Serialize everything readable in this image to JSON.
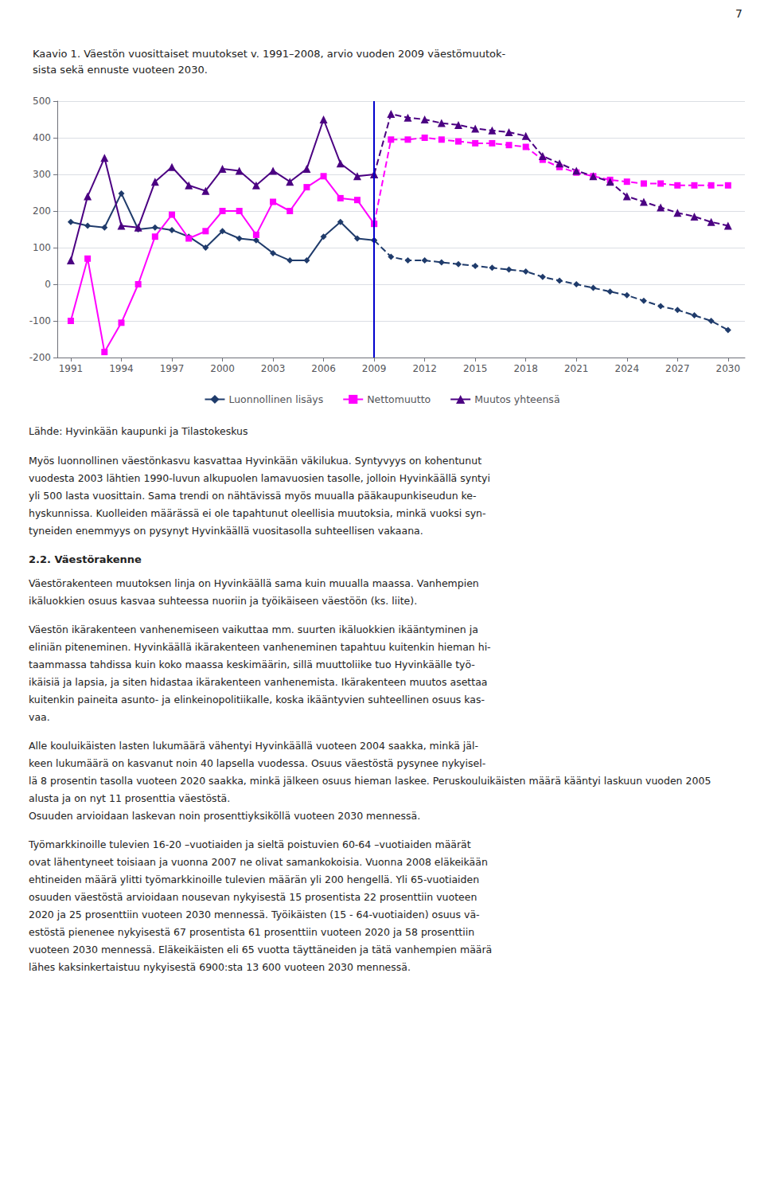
{
  "chart_data": {
    "type": "line",
    "title": [
      "Kaavio 1. Väestön vuosittaiset muutokset v. 1991–2008, arvio vuoden 2009 väestömuutok-",
      "sista sekä ennuste vuoteen 2030."
    ],
    "xlim": [
      1990.2,
      2031
    ],
    "xticks": [
      1991,
      1994,
      1997,
      2000,
      2003,
      2006,
      2009,
      2012,
      2015,
      2018,
      2021,
      2024,
      2027,
      2030
    ],
    "ylim": [
      -200,
      500
    ],
    "yticks": [
      -200,
      -100,
      0,
      100,
      200,
      300,
      400,
      500
    ],
    "grid": "y",
    "legend": "bottom",
    "series": [
      {
        "name": "Luonnollinen lisäys",
        "color": "#1F3B6B",
        "marker": "diamond",
        "line_style": "solid",
        "x": [
          1991,
          1992,
          1993,
          1994,
          1995,
          1996,
          1997,
          1998,
          1999,
          2000,
          2001,
          2002,
          2003,
          2004,
          2005,
          2006,
          2007,
          2008,
          2009
        ],
        "values": [
          170,
          160,
          155,
          248,
          150,
          155,
          148,
          130,
          100,
          145,
          125,
          120,
          85,
          65,
          65,
          130,
          170,
          125,
          120
        ]
      },
      {
        "name": "Luonnollinen lisäys",
        "color": "#1F3B6B",
        "marker": "diamond",
        "line_style": "dashed",
        "x": [
          2009,
          2010,
          2011,
          2012,
          2013,
          2014,
          2015,
          2016,
          2017,
          2018,
          2019,
          2020,
          2021,
          2022,
          2023,
          2024,
          2025,
          2026,
          2027,
          2028,
          2029,
          2030
        ],
        "values": [
          120,
          75,
          65,
          65,
          60,
          55,
          50,
          45,
          40,
          35,
          20,
          10,
          0,
          -10,
          -20,
          -30,
          -45,
          -60,
          -70,
          -85,
          -100,
          -125
        ]
      },
      {
        "name": "Nettomuutto",
        "color": "#FF00FF",
        "marker": "square",
        "line_style": "solid",
        "x": [
          1991,
          1992,
          1993,
          1994,
          1995,
          1996,
          1997,
          1998,
          1999,
          2000,
          2001,
          2002,
          2003,
          2004,
          2005,
          2006,
          2007,
          2008,
          2009
        ],
        "values": [
          -100,
          70,
          -185,
          -105,
          0,
          130,
          190,
          125,
          145,
          200,
          200,
          135,
          225,
          200,
          265,
          295,
          235,
          230,
          165
        ]
      },
      {
        "name": "Nettomuutto",
        "color": "#FF00FF",
        "marker": "square",
        "line_style": "dashed",
        "x": [
          2009,
          2010,
          2011,
          2012,
          2013,
          2014,
          2015,
          2016,
          2017,
          2018,
          2019,
          2020,
          2021,
          2022,
          2023,
          2024,
          2025,
          2026,
          2027,
          2028,
          2029,
          2030
        ],
        "values": [
          165,
          395,
          395,
          400,
          395,
          390,
          385,
          385,
          380,
          375,
          340,
          320,
          305,
          295,
          285,
          280,
          275,
          275,
          270,
          270,
          270,
          270
        ]
      },
      {
        "name": "Muutos yhteensä",
        "color": "#4B0082",
        "marker": "triangle",
        "line_style": "solid",
        "x": [
          1991,
          1992,
          1993,
          1994,
          1995,
          1996,
          1997,
          1998,
          1999,
          2000,
          2001,
          2002,
          2003,
          2004,
          2005,
          2006,
          2007,
          2008,
          2009
        ],
        "values": [
          65,
          240,
          345,
          160,
          155,
          280,
          320,
          270,
          255,
          315,
          310,
          270,
          310,
          280,
          315,
          450,
          330,
          295,
          300
        ]
      },
      {
        "name": "Muutos yhteensä",
        "color": "#4B0082",
        "marker": "triangle",
        "line_style": "dashed",
        "x": [
          2009,
          2010,
          2011,
          2012,
          2013,
          2014,
          2015,
          2016,
          2017,
          2018,
          2019,
          2020,
          2021,
          2022,
          2023,
          2024,
          2025,
          2026,
          2027,
          2028,
          2029,
          2030
        ],
        "values": [
          300,
          465,
          455,
          450,
          440,
          435,
          425,
          420,
          415,
          405,
          350,
          330,
          310,
          295,
          280,
          240,
          225,
          210,
          195,
          185,
          170,
          160
        ]
      }
    ],
    "vlines": [
      {
        "x": 2009,
        "color": "#0000CC"
      }
    ],
    "annotations": {
      "page_number": "7",
      "source": "Lähde: Hyvinkään kaupunki ja Tilastokeskus",
      "body": [
        {
          "lines": [
            "Myös luonnollinen väestönkasvu kasvattaa Hyvinkään väkilukua. Syntyvyys on kohentunut",
            "vuodesta 2003 lähtien 1990-luvun alkupuolen lamavuosien tasolle, jolloin Hyvinkäällä syntyi",
            "yli 500 lasta vuosittain. Sama trendi on nähtävissä myös muualla pääkaupunkiseudun ke-",
            "hyskunnissa. Kuolleiden määrässä ei ole tapahtunut oleellisia muutoksia, minkä vuoksi syn-",
            "tyneiden enemmyys on pysynyt Hyvinkäällä vuositasolla suhteellisen vakaana."
          ]
        },
        {
          "heading": "2.2. Väestörakenne"
        },
        {
          "lines": [
            "Väestörakenteen muutoksen linja on Hyvinkäällä sama kuin muualla maassa. Vanhempien",
            "ikäluokkien osuus kasvaa suhteessa nuoriin ja työikäiseen väestöön (ks. liite)."
          ]
        },
        {
          "lines": [
            "Väestön ikärakenteen vanhenemiseen vaikuttaa mm. suurten ikäluokkien ikääntyminen ja",
            "eliniän piteneminen. Hyvinkäällä ikärakenteen vanheneminen tapahtuu kuitenkin hieman hi-",
            "taammassa tahdissa kuin koko maassa keskimäärin, sillä muuttoliike tuo Hyvinkäälle työ-",
            "ikäisiä ja lapsia, ja siten hidastaa ikärakenteen vanhenemista. Ikärakenteen muutos asettaa",
            "kuitenkin paineita asunto- ja elinkeinopolitiikalle, koska ikääntyvien suhteellinen osuus kas-",
            "vaa."
          ]
        },
        {
          "lines": [
            "Alle kouluikäisten lasten lukumäärä vähentyi Hyvinkäällä vuoteen 2004 saakka, minkä jäl-",
            "keen lukumäärä on kasvanut noin 40 lapsella vuodessa. Osuus väestöstä pysynee nykyisel-",
            "lä 8 prosentin tasolla vuoteen 2020 saakka, minkä jälkeen osuus hieman laskee. Peruskouluikäisten määrä kääntyi laskuun vuoden 2005 alusta ja on nyt 11 prosenttia väestöstä.",
            "Osuuden arvioidaan laskevan noin prosenttiyksiköllä vuoteen 2030 mennessä."
          ]
        },
        {
          "lines": [
            "Työmarkkinoille tulevien 16-20 –vuotiaiden ja sieltä poistuvien 60-64 –vuotiaiden määrät",
            "ovat lähentyneet toisiaan ja vuonna 2007 ne olivat samankokoisia. Vuonna 2008 eläkeikään",
            "ehtineiden määrä ylitti työmarkkinoille tulevien määrän yli 200 hengellä. Yli 65-vuotiaiden",
            "osuuden väestöstä arvioidaan nousevan nykyisestä 15 prosentista 22 prosenttiin vuoteen",
            "2020 ja 25 prosenttiin vuoteen 2030 mennessä. Työikäisten (15 - 64-vuotiaiden) osuus vä-",
            "estöstä pienenee nykyisestä 67 prosentista 61 prosenttiin vuoteen 2020 ja 58 prosenttiin",
            "vuoteen 2030 mennessä. Eläkeikäisten eli 65 vuotta täyttäneiden ja tätä vanhempien määrä",
            "lähes kaksinkertaistuu nykyisestä 6900:sta 13 600 vuoteen 2030 mennessä."
          ]
        }
      ]
    }
  }
}
